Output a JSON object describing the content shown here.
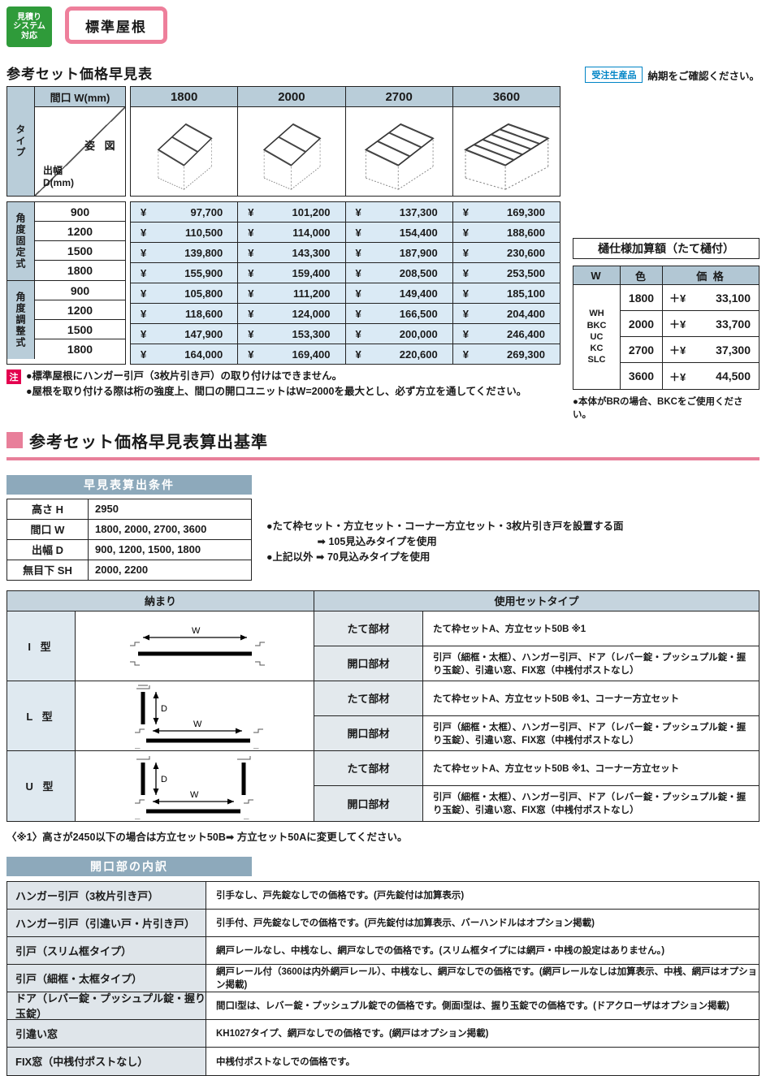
{
  "badges": {
    "estimate_system": "見積り\nシステム\n対応",
    "roof_type": "標準屋根"
  },
  "price_section": {
    "title": "参考セット価格早見表",
    "order_badge": "受注生産品",
    "order_note": "納期をご確認ください。",
    "header": {
      "width_label": "間口 W(mm)",
      "type_label": "タイプ",
      "figure_label": "姿  図",
      "depth_label": "出幅\nD(mm)"
    },
    "yen": "¥",
    "columns": [
      "1800",
      "2000",
      "2700",
      "3600"
    ],
    "note_badge": "注",
    "notes": [
      "●標準屋根にハンガー引戸（3枚片引き戸）の取り付けはできません。",
      "●屋根を取り付ける際は桁の強度上、間口の開口ユニットはW=2000を最大とし、必ず方立を通してください。"
    ]
  },
  "chart_data": {
    "type": "table",
    "title": "参考セット価格早見表",
    "columns_w_mm": [
      1800,
      2000,
      2700,
      3600
    ],
    "groups": [
      {
        "name": "角度固定式",
        "rows": [
          {
            "depth": "900",
            "prices": [
              "97,700",
              "101,200",
              "137,300",
              "169,300"
            ]
          },
          {
            "depth": "1200",
            "prices": [
              "110,500",
              "114,000",
              "154,400",
              "188,600"
            ]
          },
          {
            "depth": "1500",
            "prices": [
              "139,800",
              "143,300",
              "187,900",
              "230,600"
            ]
          },
          {
            "depth": "1800",
            "prices": [
              "155,900",
              "159,400",
              "208,500",
              "253,500"
            ]
          }
        ]
      },
      {
        "name": "角度調整式",
        "rows": [
          {
            "depth": "900",
            "prices": [
              "105,800",
              "111,200",
              "149,400",
              "185,100"
            ]
          },
          {
            "depth": "1200",
            "prices": [
              "118,600",
              "124,000",
              "166,500",
              "204,400"
            ]
          },
          {
            "depth": "1500",
            "prices": [
              "147,900",
              "153,300",
              "200,000",
              "246,400"
            ]
          },
          {
            "depth": "1800",
            "prices": [
              "164,000",
              "169,400",
              "220,600",
              "269,300"
            ]
          }
        ]
      }
    ]
  },
  "gutter_table": {
    "title": "樋仕様加算額（たて樋付）",
    "headers": [
      "W",
      "色",
      "価  格"
    ],
    "color_options": "WH\nBKC\nUC\nKC\nSLC",
    "plus_yen": "＋¥",
    "rows": [
      {
        "w": "1800",
        "price": "33,100"
      },
      {
        "w": "2000",
        "price": "33,700"
      },
      {
        "w": "2700",
        "price": "37,300"
      },
      {
        "w": "3600",
        "price": "44,500"
      }
    ],
    "note": "●本体がBRの場合、BKCをご使用ください。"
  },
  "basis_section": {
    "title": "参考セット価格早見表算出基準",
    "conditions": {
      "title": "早見表算出条件",
      "rows": [
        {
          "label": "高さ H",
          "value": "2950"
        },
        {
          "label": "間口 W",
          "value": "1800, 2000, 2700, 3600"
        },
        {
          "label": "出幅 D",
          "value": "900, 1200, 1500, 1800"
        },
        {
          "label": "無目下 SH",
          "value": "2000, 2200"
        }
      ]
    },
    "bullets": "●たて枠セット・方立セット・コーナー方立セット・3枚片引き戸を設置する面\n　　　　　➡ 105見込みタイプを使用\n●上記以外 ➡ 70見込みタイプを使用"
  },
  "set_table": {
    "header_left": "納まり",
    "header_right": "使用セットタイプ",
    "part_labels": {
      "vertical": "たて部材",
      "opening": "開口部材"
    },
    "groups": [
      {
        "type": "I 型",
        "diagram": "i",
        "vertical_desc": "たて枠セットA、方立セット50B ※1",
        "opening_desc": "引戸（細框・太框）、ハンガー引戸、ドア（レバー錠・プッシュプル錠・握り玉錠）、引違い窓、FIX窓（中桟付ポストなし）"
      },
      {
        "type": "L 型",
        "diagram": "l",
        "vertical_desc": "たて枠セットA、方立セット50B ※1、コーナー方立セット",
        "opening_desc": "引戸（細框・太框）、ハンガー引戸、ドア（レバー錠・プッシュプル錠・握り玉錠）、引違い窓、FIX窓（中桟付ポストなし）"
      },
      {
        "type": "U 型",
        "diagram": "u",
        "vertical_desc": "たて枠セットA、方立セット50B ※1、コーナー方立セット",
        "opening_desc": "引戸（細框・太框）、ハンガー引戸、ドア（レバー錠・プッシュプル錠・握り玉錠）、引違い窓、FIX窓（中桟付ポストなし）"
      }
    ],
    "footnote": "〈※1〉高さが2450以下の場合は方立セット50B➡ 方立セット50Aに変更してください。"
  },
  "opening_table": {
    "title": "開口部の内訳",
    "rows": [
      {
        "label": "ハンガー引戸（3枚片引き戸）",
        "desc": "引手なし、戸先錠なしでの価格です。(戸先錠付は加算表示)"
      },
      {
        "label": "ハンガー引戸（引違い戸・片引き戸）",
        "desc": "引手付、戸先錠なしでの価格です。(戸先錠付は加算表示、バーハンドルはオプション掲載)"
      },
      {
        "label": "引戸（スリム框タイプ）",
        "desc": "網戸レールなし、中桟なし、網戸なしでの価格です。(スリム框タイプには網戸・中桟の設定はありません。)"
      },
      {
        "label": "引戸（細框・太框タイプ）",
        "desc": "網戸レール付（3600は内外網戸レール）、中桟なし、網戸なしでの価格です。(網戸レールなしは加算表示、中桟、網戸はオプション掲載)"
      },
      {
        "label": "ドア（レバー錠・プッシュプル錠・握り玉錠）",
        "desc": "間口I型は、レバー錠・プッシュプル錠での価格です。側面I型は、握り玉錠での価格です。(ドアクローザはオプション掲載)"
      },
      {
        "label": "引違い窓",
        "desc": "KH1027タイプ、網戸なしでの価格です。(網戸はオプション掲載)"
      },
      {
        "label": "FIX窓（中桟付ポストなし）",
        "desc": "中桟付ポストなしでの価格です。"
      }
    ]
  },
  "colors": {
    "accent_pink": "#e87f9a",
    "badge_green": "#2f9b3a",
    "badge_blue": "#0084c6",
    "note_red": "#e4004f",
    "header_blue_gray": "#b9cdd9",
    "price_cell_blue": "#daeaf5",
    "band_gray_blue": "#8da9bb"
  }
}
